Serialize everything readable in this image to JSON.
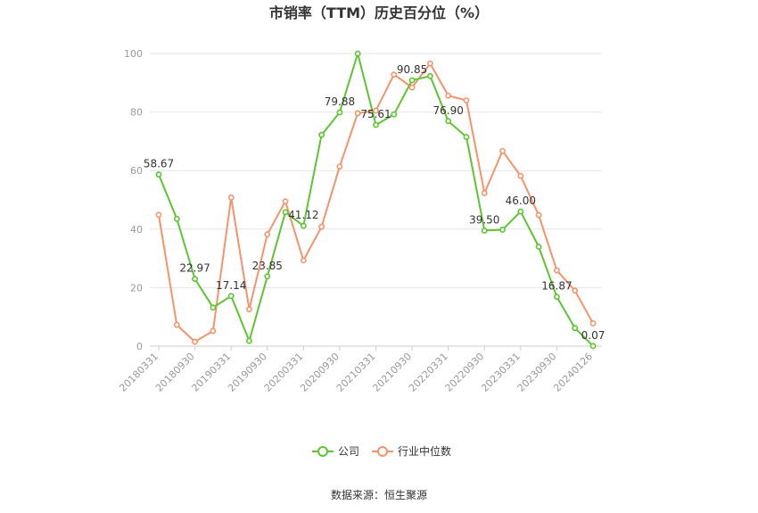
{
  "chart_data": {
    "type": "line",
    "title": "市销率（TTM）历史百分位（%）",
    "ylim": [
      0,
      100
    ],
    "yticks": [
      0,
      20,
      40,
      60,
      80,
      100
    ],
    "x_tick_labels": [
      "20180331",
      "20180930",
      "20190331",
      "20190930",
      "20200331",
      "20200930",
      "20210331",
      "20210930",
      "20220331",
      "20220930",
      "20230331",
      "20230930",
      "20240126"
    ],
    "series": [
      {
        "name": "公司",
        "color": "#5cc531",
        "values": [
          58.67,
          43.5,
          22.97,
          13.2,
          17.14,
          1.8,
          23.85,
          45.8,
          41.12,
          72.2,
          79.88,
          100,
          75.61,
          79.2,
          90.85,
          92.3,
          76.9,
          71.5,
          39.5,
          39.8,
          46.0,
          34.0,
          16.87,
          6.2,
          0.07
        ]
      },
      {
        "name": "行业中位数",
        "color": "#f5936a",
        "values": [
          44.9,
          7.3,
          1.5,
          5.2,
          50.8,
          12.6,
          38.2,
          49.5,
          29.3,
          40.8,
          61.4,
          79.6,
          80.5,
          92.8,
          88.4,
          96.6,
          85.6,
          84.0,
          52.3,
          66.7,
          58.2,
          44.8,
          25.9,
          19.0,
          7.8
        ]
      }
    ],
    "data_labels": [
      {
        "series": 0,
        "index": 0,
        "text": "58.67"
      },
      {
        "series": 0,
        "index": 2,
        "text": "22.97"
      },
      {
        "series": 0,
        "index": 4,
        "text": "17.14"
      },
      {
        "series": 0,
        "index": 6,
        "text": "23.85"
      },
      {
        "series": 0,
        "index": 8,
        "text": "41.12"
      },
      {
        "series": 0,
        "index": 10,
        "text": "79.88"
      },
      {
        "series": 0,
        "index": 12,
        "text": "75.61"
      },
      {
        "series": 0,
        "index": 14,
        "text": "90.85"
      },
      {
        "series": 0,
        "index": 16,
        "text": "76.90"
      },
      {
        "series": 0,
        "index": 18,
        "text": "39.50"
      },
      {
        "series": 0,
        "index": 20,
        "text": "46.00"
      },
      {
        "series": 0,
        "index": 22,
        "text": "16.87"
      },
      {
        "series": 0,
        "index": 24,
        "text": "0.07"
      }
    ],
    "legend_position": "bottom-center",
    "grid": true
  },
  "source": "数据来源：恒生聚源"
}
